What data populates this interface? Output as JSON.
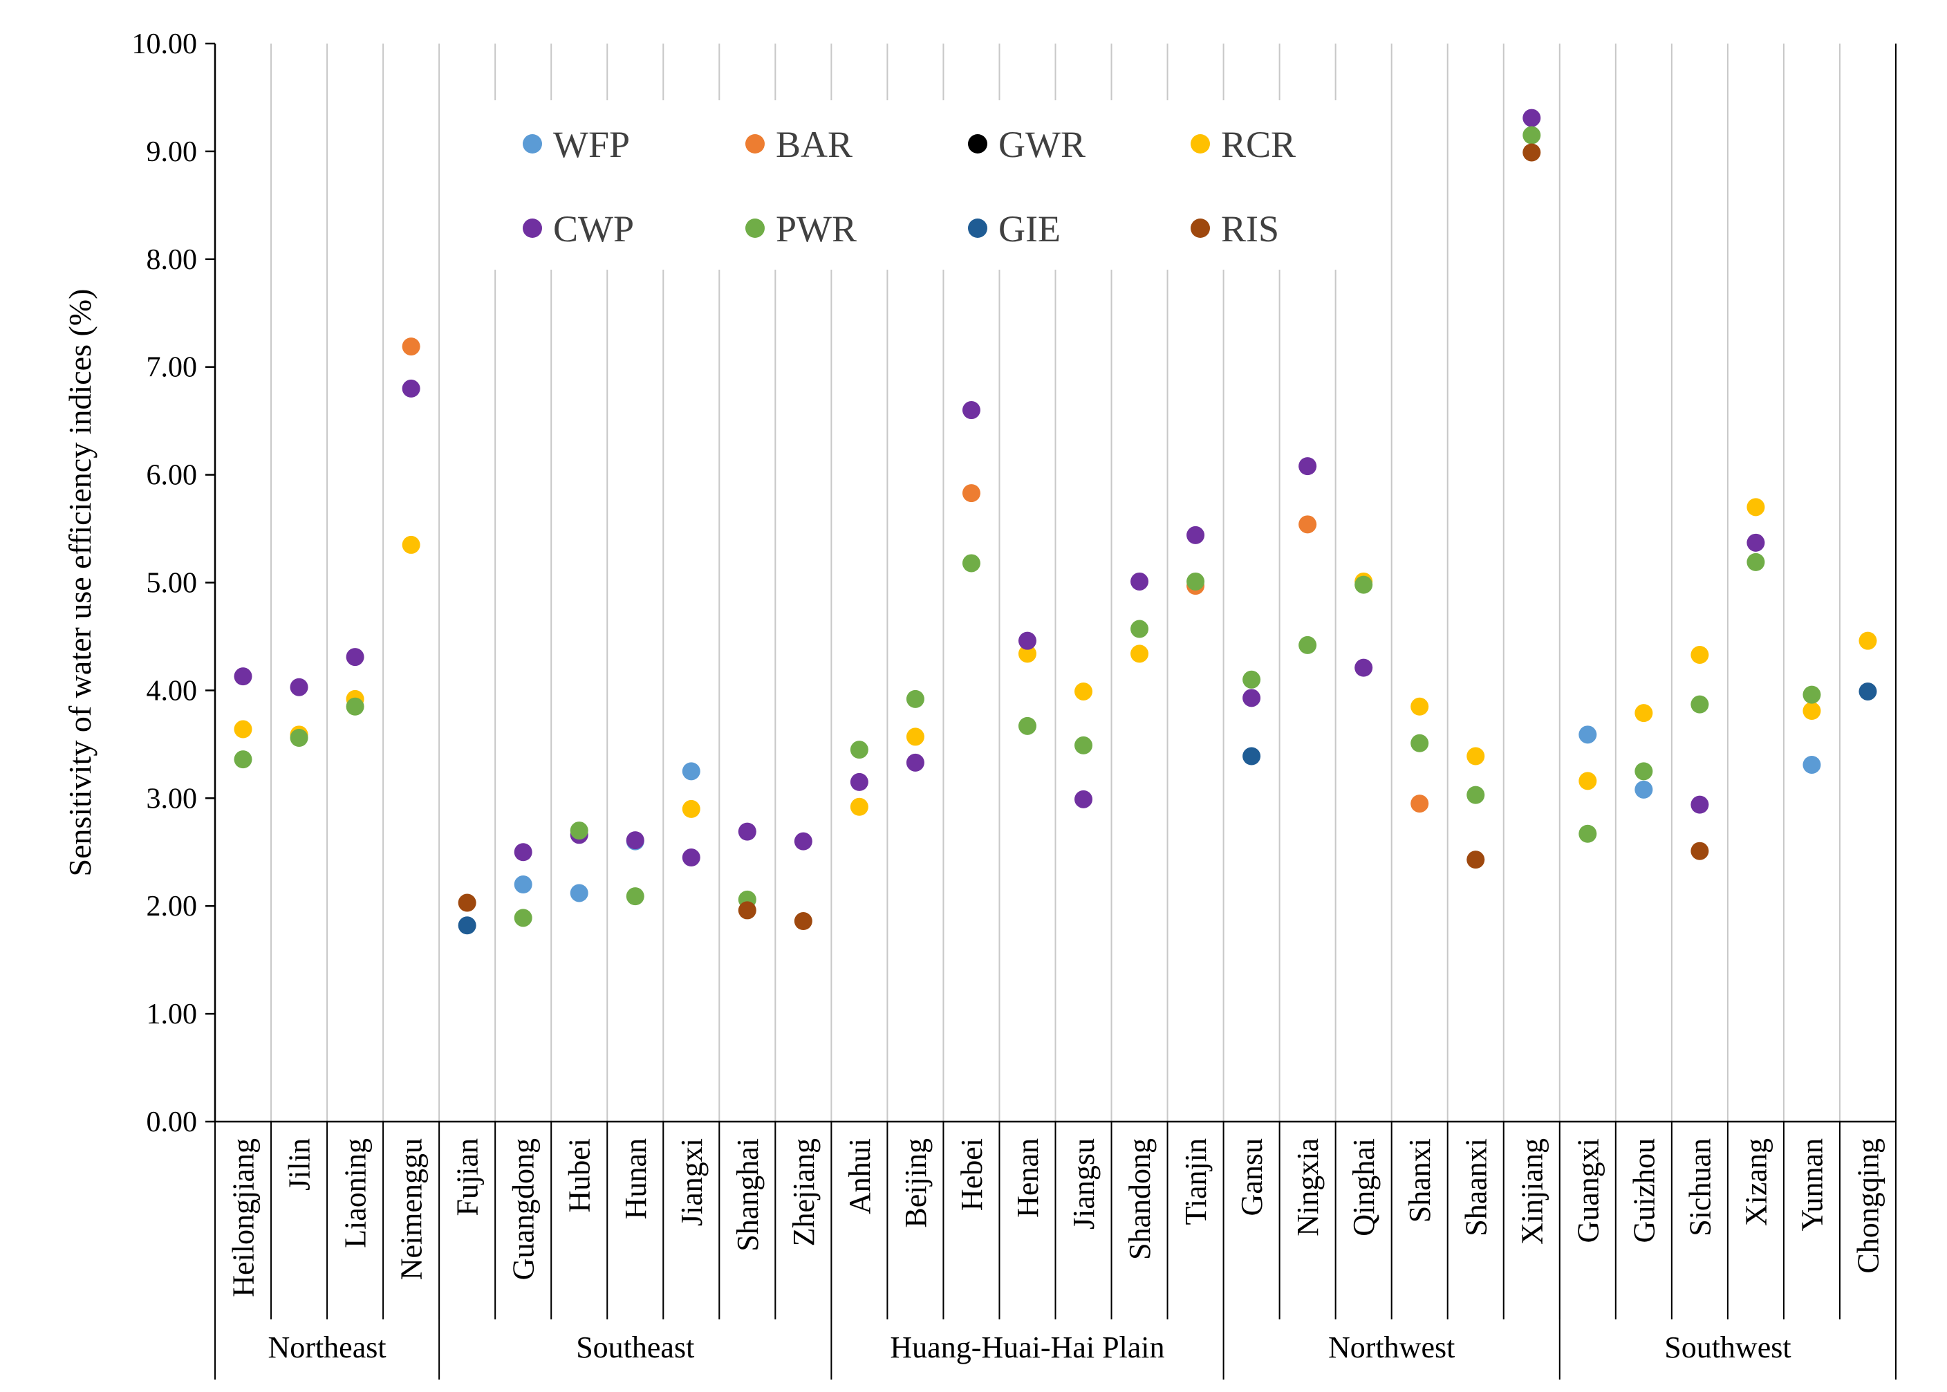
{
  "chart_data": {
    "type": "scatter",
    "title": "",
    "xlabel": "",
    "ylabel": "Sensitivity of water use efficiency indices (%)",
    "ylim": [
      0,
      10
    ],
    "y_ticks": [
      "0.00",
      "1.00",
      "2.00",
      "3.00",
      "4.00",
      "5.00",
      "6.00",
      "7.00",
      "8.00",
      "9.00",
      "10.00"
    ],
    "categories": [
      "Heilongjiang",
      "Jilin",
      "Liaoning",
      "Neimenggu",
      "Fujian",
      "Guangdong",
      "Hubei",
      "Hunan",
      "Jiangxi",
      "Shanghai",
      "Zhejiang",
      "Anhui",
      "Beijing",
      "Hebei",
      "Henan",
      "Jiangsu",
      "Shandong",
      "Tianjin",
      "Gansu",
      "Ningxia",
      "Qinghai",
      "Shanxi",
      "Shaanxi",
      "Xinjiang",
      "Guangxi",
      "Guizhou",
      "Sichuan",
      "Xizang",
      "Yunnan",
      "Chongqing"
    ],
    "groups": [
      {
        "name": "Northeast",
        "count": 4
      },
      {
        "name": "Southeast",
        "count": 7
      },
      {
        "name": "Huang-Huai-Hai Plain",
        "count": 7
      },
      {
        "name": "Northwest",
        "count": 6
      },
      {
        "name": "Southwest",
        "count": 6
      }
    ],
    "legend_position": "top-center",
    "grid": "vertical category separators",
    "series": [
      {
        "name": "WFP",
        "color": "#5B9BD5",
        "values": [
          null,
          null,
          null,
          null,
          null,
          2.2,
          2.12,
          2.6,
          3.25,
          null,
          null,
          null,
          null,
          null,
          null,
          null,
          null,
          null,
          null,
          null,
          null,
          null,
          null,
          null,
          3.59,
          3.08,
          null,
          null,
          3.31,
          null
        ]
      },
      {
        "name": "BAR",
        "color": "#ED7D31",
        "values": [
          null,
          null,
          null,
          7.19,
          null,
          null,
          null,
          null,
          null,
          null,
          null,
          null,
          null,
          5.83,
          null,
          null,
          null,
          4.97,
          null,
          5.54,
          null,
          2.95,
          null,
          null,
          null,
          null,
          null,
          null,
          null,
          null
        ]
      },
      {
        "name": "GWR",
        "color": "#000000",
        "values": [
          null,
          null,
          null,
          null,
          null,
          null,
          null,
          null,
          null,
          null,
          null,
          null,
          null,
          null,
          null,
          null,
          null,
          null,
          null,
          null,
          null,
          null,
          null,
          null,
          null,
          null,
          null,
          null,
          null,
          null
        ]
      },
      {
        "name": "RCR",
        "color": "#FFC000",
        "values": [
          3.64,
          3.59,
          3.92,
          5.35,
          null,
          null,
          null,
          null,
          2.9,
          null,
          null,
          2.92,
          3.57,
          null,
          4.34,
          3.99,
          4.34,
          null,
          null,
          null,
          5.01,
          3.85,
          3.39,
          null,
          3.16,
          3.79,
          4.33,
          5.7,
          3.81,
          4.46
        ]
      },
      {
        "name": "CWP",
        "color": "#7030A0",
        "values": [
          4.13,
          4.03,
          4.31,
          6.8,
          null,
          2.5,
          2.66,
          2.61,
          2.45,
          2.69,
          2.6,
          3.15,
          3.33,
          6.6,
          4.46,
          2.99,
          5.01,
          5.44,
          3.93,
          6.08,
          4.21,
          null,
          null,
          9.31,
          null,
          null,
          2.94,
          5.37,
          null,
          null
        ]
      },
      {
        "name": "PWR",
        "color": "#70AD47",
        "values": [
          3.36,
          3.56,
          3.85,
          null,
          null,
          1.89,
          2.7,
          2.09,
          null,
          2.06,
          null,
          3.45,
          3.92,
          5.18,
          3.67,
          3.49,
          4.57,
          5.01,
          4.1,
          4.42,
          4.98,
          3.51,
          3.03,
          9.15,
          2.67,
          3.25,
          3.87,
          5.19,
          3.96,
          null
        ]
      },
      {
        "name": "GIE",
        "color": "#1F5C94",
        "values": [
          null,
          null,
          null,
          null,
          1.82,
          null,
          null,
          null,
          null,
          null,
          null,
          null,
          null,
          null,
          null,
          null,
          null,
          null,
          3.39,
          null,
          null,
          null,
          null,
          null,
          null,
          null,
          null,
          null,
          null,
          3.99
        ]
      },
      {
        "name": "RIS",
        "color": "#9E480E",
        "values": [
          null,
          null,
          null,
          null,
          2.03,
          null,
          null,
          null,
          null,
          1.96,
          1.86,
          null,
          null,
          null,
          null,
          null,
          null,
          null,
          null,
          null,
          null,
          null,
          2.43,
          8.99,
          null,
          null,
          2.51,
          null,
          null,
          null
        ]
      }
    ]
  }
}
